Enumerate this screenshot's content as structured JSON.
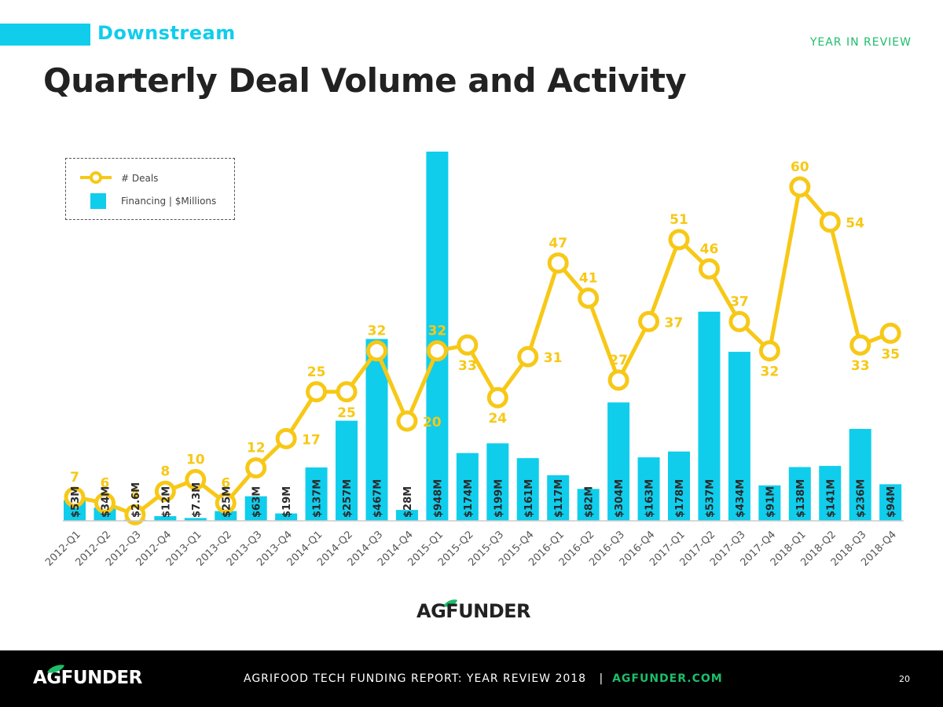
{
  "header": {
    "section": "Downstream",
    "tag": "YEAR IN REVIEW",
    "title": "Quarterly Deal Volume and Activity"
  },
  "legend": {
    "deals_label": "# Deals",
    "financing_label": "Financing | $Millions"
  },
  "colors": {
    "bar": "#10CDEC",
    "line": "#F7C816",
    "title": "#222222",
    "accent_green": "#1DBE6A"
  },
  "chart_data": {
    "type": "bar",
    "title": "Quarterly Deal Volume and Activity",
    "categories": [
      "2012-Q1",
      "2012-Q2",
      "2012-Q3",
      "2012-Q4",
      "2013-Q1",
      "2013-Q2",
      "2013-Q3",
      "2013-Q4",
      "2014-Q1",
      "2014-Q2",
      "2014-Q3",
      "2014-Q4",
      "2015-Q1",
      "2015-Q2",
      "2015-Q3",
      "2015-Q4",
      "2016-Q1",
      "2016-Q2",
      "2016-Q3",
      "2016-Q4",
      "2017-Q1",
      "2017-Q2",
      "2017-Q3",
      "2017-Q4",
      "2018-Q1",
      "2018-Q2",
      "2018-Q3",
      "2018-Q4"
    ],
    "series": [
      {
        "name": "Financing | $Millions",
        "type": "bar",
        "values": [
          53,
          34,
          2.6,
          12,
          7.3,
          25,
          63,
          19,
          137,
          257,
          467,
          28,
          948,
          174,
          199,
          161,
          117,
          82,
          304,
          163,
          178,
          537,
          434,
          91,
          138,
          141,
          236,
          94
        ],
        "labels": [
          "$53M",
          "$34M",
          "$2.6M",
          "$12M",
          "$7.3M",
          "$25M",
          "$63M",
          "$19M",
          "$137M",
          "$257M",
          "$467M",
          "$28M",
          "$948M",
          "$174M",
          "$199M",
          "$161M",
          "$117M",
          "$82M",
          "$304M",
          "$163M",
          "$178M",
          "$537M",
          "$434M",
          "$91M",
          "$138M",
          "$141M",
          "$236M",
          "$94M"
        ]
      },
      {
        "name": "# Deals",
        "type": "line",
        "values": [
          7,
          6,
          4,
          8,
          10,
          6,
          12,
          17,
          25,
          25,
          32,
          20,
          32,
          33,
          24,
          31,
          47,
          41,
          27,
          37,
          51,
          46,
          37,
          32,
          60,
          54,
          33,
          35
        ],
        "label_side": [
          "above",
          "above",
          "above",
          "above",
          "above",
          "above",
          "above",
          "right",
          "above",
          "below",
          "above",
          "right",
          "above",
          "below",
          "below",
          "right",
          "above",
          "above",
          "above",
          "right",
          "above",
          "above",
          "above",
          "below",
          "above",
          "right",
          "below",
          "below"
        ]
      }
    ],
    "xlabel": "",
    "ylabel": "",
    "bar_ylim": [
      0,
      948
    ],
    "line_ylim": [
      0,
      60
    ],
    "grid": false,
    "legend_position": "top-left"
  },
  "logo": {
    "text": "AGFUNDER"
  },
  "footer": {
    "logo": "AGFUNDER",
    "report": "AGRIFOOD TECH FUNDING REPORT: YEAR REVIEW 2018",
    "separator": "|",
    "link": "AGFUNDER.COM",
    "page": "20"
  }
}
